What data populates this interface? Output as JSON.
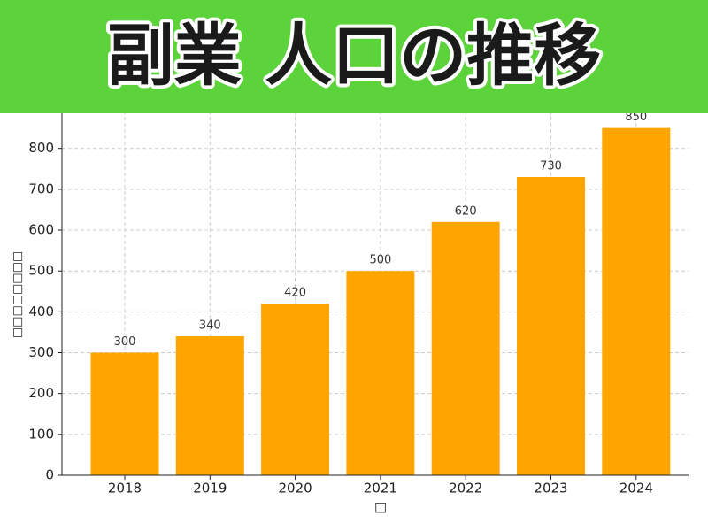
{
  "chart_data": {
    "type": "bar",
    "title": "副業 人口の推移",
    "categories": [
      "2018",
      "2019",
      "2020",
      "2021",
      "2022",
      "2023",
      "2024"
    ],
    "values": [
      300,
      340,
      420,
      500,
      620,
      730,
      850
    ],
    "color": "#ffa500",
    "ylim": [
      0,
      892.5
    ],
    "yticks": [
      0,
      100,
      200,
      300,
      400,
      500,
      600,
      700,
      800
    ],
    "y_label": "□□□□□□□□",
    "x_label": "□",
    "grid": true
  }
}
